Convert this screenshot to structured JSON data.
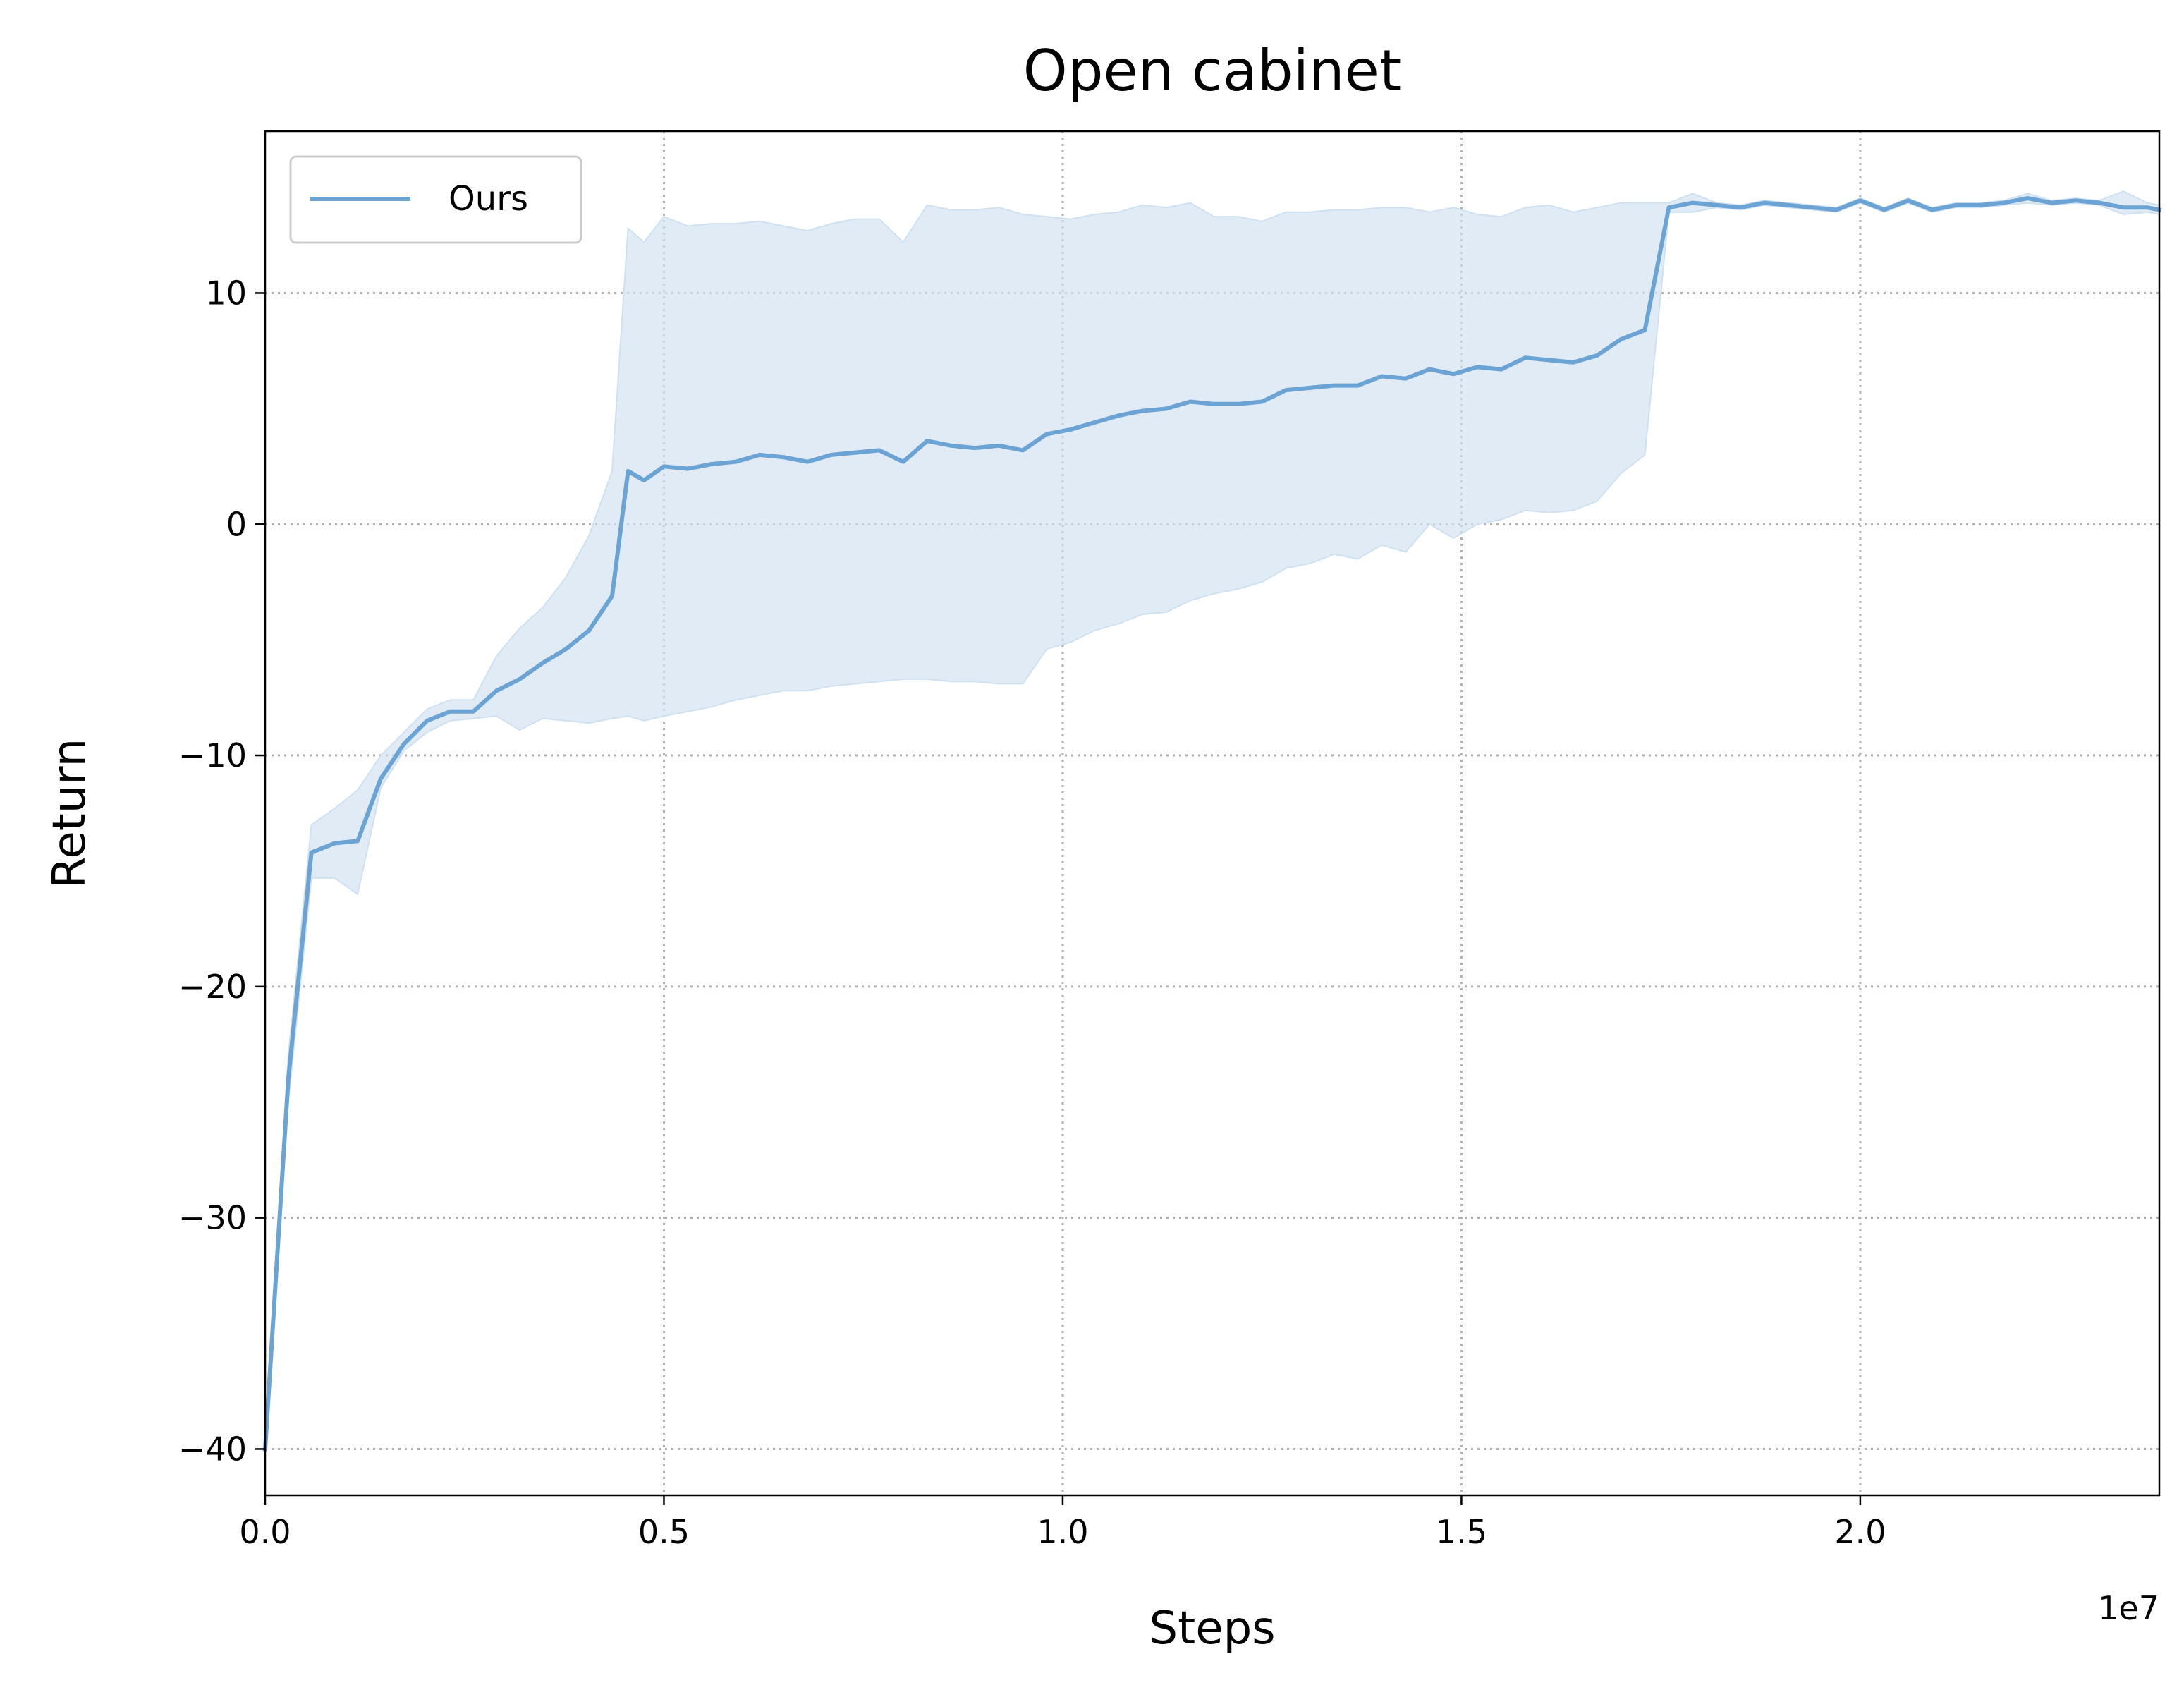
{
  "chart_data": {
    "type": "line",
    "title": "Open cabinet",
    "xlabel": "Steps",
    "ylabel": "Return",
    "x_offset_label": "1e7",
    "xlim": [
      0.0,
      2.375
    ],
    "ylim": [
      -42,
      17
    ],
    "xticks": [
      0.0,
      0.5,
      1.0,
      1.5,
      2.0
    ],
    "xtick_labels": [
      "0.0",
      "0.5",
      "1.0",
      "1.5",
      "2.0"
    ],
    "yticks": [
      -40,
      -30,
      -20,
      -10,
      0,
      10
    ],
    "ytick_labels": [
      "−40",
      "−30",
      "−20",
      "−10",
      "0",
      "10"
    ],
    "grid": true,
    "legend_position": "upper-left",
    "series": [
      {
        "name": "Ours",
        "color": "#6aa3d4",
        "fill_color": "#cfe1f1",
        "x": [
          0.0,
          0.029,
          0.058,
          0.087,
          0.116,
          0.145,
          0.174,
          0.203,
          0.232,
          0.261,
          0.29,
          0.319,
          0.348,
          0.377,
          0.406,
          0.435,
          0.455,
          0.475,
          0.5,
          0.53,
          0.56,
          0.59,
          0.62,
          0.65,
          0.68,
          0.71,
          0.74,
          0.77,
          0.8,
          0.83,
          0.86,
          0.89,
          0.92,
          0.95,
          0.98,
          1.01,
          1.04,
          1.07,
          1.1,
          1.13,
          1.16,
          1.19,
          1.22,
          1.25,
          1.28,
          1.31,
          1.34,
          1.37,
          1.4,
          1.43,
          1.46,
          1.49,
          1.52,
          1.55,
          1.58,
          1.61,
          1.64,
          1.67,
          1.7,
          1.73,
          1.76,
          1.79,
          1.82,
          1.85,
          1.88,
          1.91,
          1.94,
          1.97,
          2.0,
          2.03,
          2.06,
          2.09,
          2.12,
          2.15,
          2.18,
          2.21,
          2.24,
          2.27,
          2.3,
          2.33,
          2.36,
          2.375
        ],
        "y": [
          -40.0,
          -24.0,
          -14.2,
          -13.8,
          -13.7,
          -11.0,
          -9.5,
          -8.5,
          -8.1,
          -8.1,
          -7.2,
          -6.7,
          -6.0,
          -5.4,
          -4.6,
          -3.1,
          2.3,
          1.9,
          2.5,
          2.4,
          2.6,
          2.7,
          3.0,
          2.9,
          2.7,
          3.0,
          3.1,
          3.2,
          2.7,
          3.6,
          3.4,
          3.3,
          3.4,
          3.2,
          3.9,
          4.1,
          4.4,
          4.7,
          4.9,
          5.0,
          5.3,
          5.2,
          5.2,
          5.3,
          5.8,
          5.9,
          6.0,
          6.0,
          6.4,
          6.3,
          6.7,
          6.5,
          6.8,
          6.7,
          7.2,
          7.1,
          7.0,
          7.3,
          8.0,
          8.4,
          13.7,
          13.9,
          13.8,
          13.7,
          13.9,
          13.8,
          13.7,
          13.6,
          14.0,
          13.6,
          14.0,
          13.6,
          13.8,
          13.8,
          13.9,
          14.1,
          13.9,
          14.0,
          13.9,
          13.7,
          13.7,
          13.6
        ],
        "y_upper": [
          -40.0,
          -23.0,
          -13.0,
          -12.3,
          -11.5,
          -10.0,
          -9.0,
          -8.0,
          -7.6,
          -7.6,
          -5.7,
          -4.5,
          -3.6,
          -2.3,
          -0.5,
          2.3,
          12.8,
          12.2,
          13.3,
          12.9,
          13.0,
          13.0,
          13.1,
          12.9,
          12.7,
          13.0,
          13.2,
          13.2,
          12.2,
          13.8,
          13.6,
          13.6,
          13.7,
          13.4,
          13.3,
          13.2,
          13.4,
          13.5,
          13.8,
          13.7,
          13.9,
          13.3,
          13.3,
          13.1,
          13.5,
          13.5,
          13.6,
          13.6,
          13.7,
          13.7,
          13.5,
          13.7,
          13.4,
          13.3,
          13.7,
          13.8,
          13.5,
          13.7,
          13.9,
          13.9,
          13.9,
          14.3,
          13.9,
          13.8,
          14.0,
          13.9,
          13.8,
          13.7,
          14.1,
          13.7,
          14.1,
          13.7,
          13.9,
          13.9,
          14.0,
          14.3,
          14.0,
          14.1,
          14.0,
          14.4,
          13.9,
          13.8
        ],
        "y_lower": [
          -40.0,
          -25.0,
          -15.3,
          -15.3,
          -16.0,
          -11.4,
          -9.8,
          -9.0,
          -8.5,
          -8.4,
          -8.3,
          -8.9,
          -8.4,
          -8.5,
          -8.6,
          -8.4,
          -8.3,
          -8.5,
          -8.3,
          -8.1,
          -7.9,
          -7.6,
          -7.4,
          -7.2,
          -7.2,
          -7.0,
          -6.9,
          -6.8,
          -6.7,
          -6.7,
          -6.8,
          -6.8,
          -6.9,
          -6.9,
          -5.4,
          -5.1,
          -4.6,
          -4.3,
          -3.9,
          -3.8,
          -3.3,
          -3.0,
          -2.8,
          -2.5,
          -1.9,
          -1.7,
          -1.3,
          -1.5,
          -0.9,
          -1.2,
          0.0,
          -0.6,
          0.0,
          0.2,
          0.6,
          0.5,
          0.6,
          1.0,
          2.2,
          3.0,
          13.5,
          13.5,
          13.7,
          13.6,
          13.8,
          13.7,
          13.6,
          13.5,
          13.9,
          13.5,
          13.9,
          13.5,
          13.7,
          13.7,
          13.8,
          13.9,
          13.8,
          13.9,
          13.8,
          13.4,
          13.5,
          13.4
        ]
      }
    ]
  }
}
